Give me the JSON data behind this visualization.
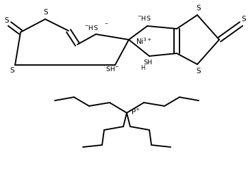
{
  "bg_color": "#ffffff",
  "lc": "#000000",
  "lw": 1.4,
  "dlo": 0.012,
  "figsize": [
    3.62,
    2.5
  ],
  "dpi": 100,
  "xlim": [
    0,
    362
  ],
  "ylim": [
    0,
    250
  ]
}
